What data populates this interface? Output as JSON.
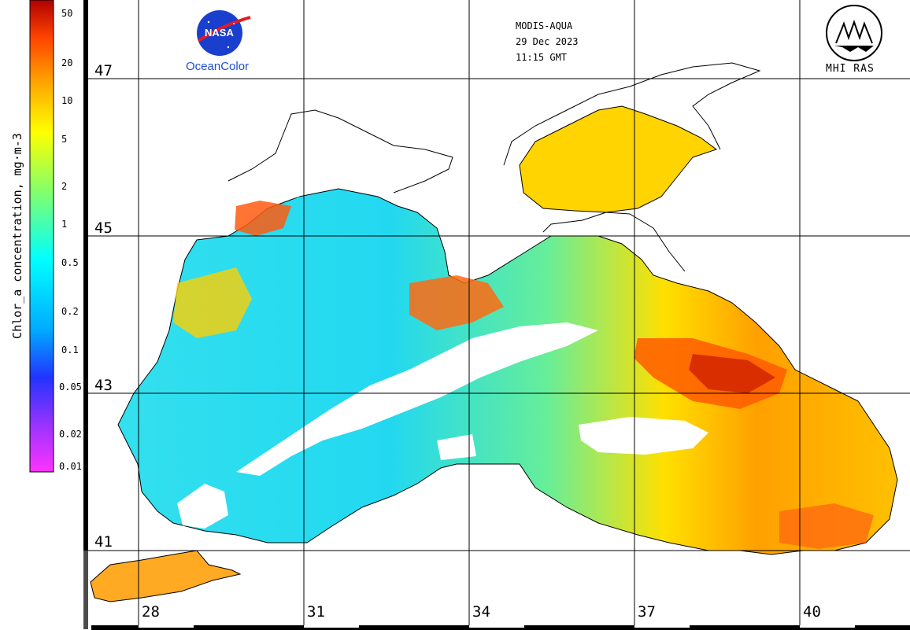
{
  "header": {
    "sensor": "MODIS-AQUA",
    "date": "29 Dec 2023",
    "time": "11:15 GMT"
  },
  "logos": {
    "nasa_text": "NASA",
    "nasa_caption": "OceanColor",
    "mhi_caption": "MHI RAS"
  },
  "colorbar": {
    "title": "Chlor_a concentration, mg·m-3",
    "ticks": [
      "50",
      "20",
      "10",
      "5",
      "2",
      "1",
      "0.5",
      "0.2",
      "0.1",
      "0.05",
      "0.02",
      "0.01"
    ],
    "palette": [
      "#ff33ff",
      "#9933ff",
      "#2233ff",
      "#00aaff",
      "#00ffff",
      "#88ff66",
      "#ffff00",
      "#ffaa00",
      "#ff4400",
      "#b00000"
    ]
  },
  "map": {
    "latitudes": [
      "47",
      "45",
      "43",
      "41"
    ],
    "longitudes": [
      "28",
      "31",
      "34",
      "37",
      "40"
    ],
    "land_color": "#ffffff",
    "no_data_color": "#ffffff",
    "coast_color": "#000000",
    "grid_color": "#000000"
  }
}
